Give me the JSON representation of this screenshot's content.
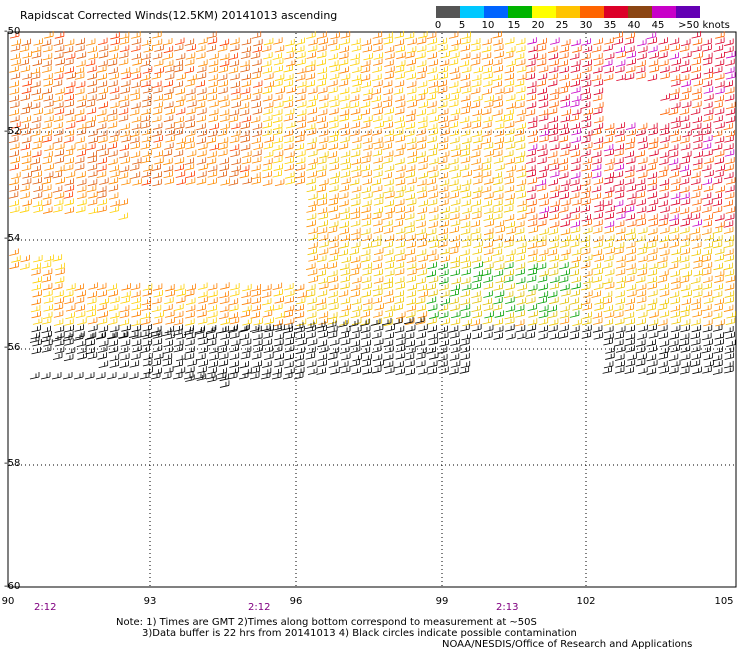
{
  "title": "Rapidscat Corrected Winds(12.5KM) 20141013 ascending",
  "legend": {
    "labels": [
      "0",
      "5",
      "10",
      "15",
      "20",
      "25",
      "30",
      "35",
      "40",
      "45",
      ">50 knots"
    ],
    "colors": [
      "#555555",
      "#00c8ff",
      "#0064ff",
      "#00b400",
      "#ffff00",
      "#ffc400",
      "#ff6400",
      "#dc0028",
      "#8b4513",
      "#c800c8",
      "#6400b4"
    ]
  },
  "axes": {
    "x_ticks": [
      "90",
      "93",
      "96",
      "99",
      "102",
      "105"
    ],
    "y_ticks": [
      "-50",
      "-52",
      "-54",
      "-56",
      "-58",
      "-60"
    ]
  },
  "times": [
    "2:12",
    "2:12",
    "2:13"
  ],
  "notes": {
    "line1": "Note: 1) Times are GMT 2)Times along bottom correspond to measurement at ~50S",
    "line2": "3)Data buffer is 22 hrs from 20141013 4) Black circles indicate possible contamination",
    "credit": "NOAA/NESDIS/Office of Research and Applications"
  }
}
